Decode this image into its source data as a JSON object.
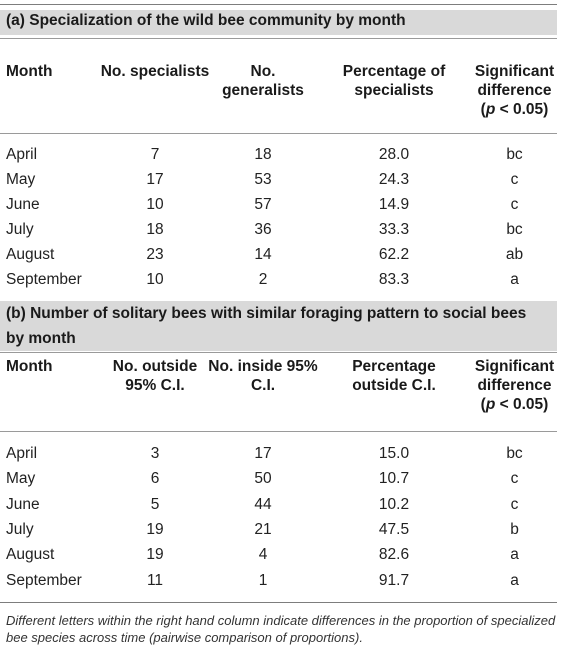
{
  "section_a": {
    "title": "(a) Specialization of the wild bee community by month",
    "headers": {
      "month": "Month",
      "col1": "No. specialists",
      "col2": "No. generalists",
      "col3": "Percentage of specialists",
      "col4_line1": "Significant",
      "col4_line2": "difference",
      "col4_line3_open": "(",
      "col4_line3_p": "p",
      "col4_line3_rest": " < 0.05)"
    },
    "rows": [
      [
        "April",
        "7",
        "18",
        "28.0",
        "bc"
      ],
      [
        "May",
        "17",
        "53",
        "24.3",
        "c"
      ],
      [
        "June",
        "10",
        "57",
        "14.9",
        "c"
      ],
      [
        "July",
        "18",
        "36",
        "33.3",
        "bc"
      ],
      [
        "August",
        "23",
        "14",
        "62.2",
        "ab"
      ],
      [
        "September",
        "10",
        "2",
        "83.3",
        "a"
      ]
    ]
  },
  "section_b": {
    "title_line1": "(b) Number of solitary bees with similar foraging pattern to social bees",
    "title_line2": "by month",
    "headers": {
      "month": "Month",
      "col1": "No. outside 95% C.I.",
      "col2": "No. inside 95% C.I.",
      "col3": "Percentage outside C.I.",
      "col4_line1": "Significant",
      "col4_line2": "difference",
      "col4_line3_open": "(",
      "col4_line3_p": "p",
      "col4_line3_rest": " < 0.05)"
    },
    "rows": [
      [
        "April",
        "3",
        "17",
        "15.0",
        "bc"
      ],
      [
        "May",
        "6",
        "50",
        "10.7",
        "c"
      ],
      [
        "June",
        "5",
        "44",
        "10.2",
        "c"
      ],
      [
        "July",
        "19",
        "21",
        "47.5",
        "b"
      ],
      [
        "August",
        "19",
        "4",
        "82.6",
        "a"
      ],
      [
        "September",
        "11",
        "1",
        "91.7",
        "a"
      ]
    ]
  },
  "footnote": "Different letters within the right hand column indicate differences in the proportion of specialized bee species across time (pairwise comparison of proportions)."
}
